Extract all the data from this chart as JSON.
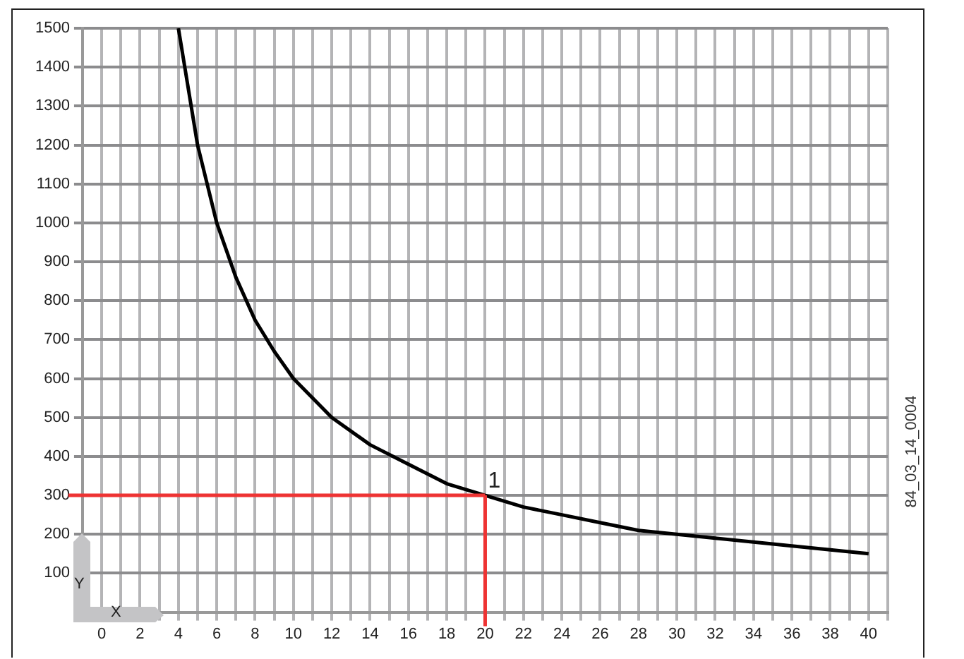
{
  "chart_data": {
    "type": "line",
    "xlabel": "X",
    "ylabel": "Y",
    "series": [
      {
        "color": "#000000",
        "x": [
          4,
          5,
          6,
          7,
          8,
          9,
          10,
          12,
          14,
          16,
          18,
          20,
          22,
          24,
          26,
          28,
          30,
          32,
          34,
          36,
          38,
          40
        ],
        "values": [
          1500,
          1200,
          1000,
          860,
          750,
          670,
          600,
          500,
          430,
          380,
          330,
          300,
          270,
          250,
          230,
          210,
          200,
          190,
          180,
          170,
          160,
          150
        ]
      }
    ],
    "xlim": [
      -1,
      41
    ],
    "xticks": [
      {
        "value": -1,
        "label": null
      },
      0,
      {
        "value": 1,
        "label": null
      },
      2,
      {
        "value": 3,
        "label": null
      },
      4,
      {
        "value": 5,
        "label": null
      },
      6,
      {
        "value": 7,
        "label": null
      },
      8,
      {
        "value": 9,
        "label": null
      },
      10,
      {
        "value": 11,
        "label": null
      },
      12,
      {
        "value": 13,
        "label": null
      },
      14,
      {
        "value": 15,
        "label": null
      },
      16,
      {
        "value": 17,
        "label": null
      },
      18,
      {
        "value": 19,
        "label": null
      },
      20,
      {
        "value": 21,
        "label": null
      },
      22,
      {
        "value": 23,
        "label": null
      },
      24,
      {
        "value": 25,
        "label": null
      },
      26,
      {
        "value": 27,
        "label": null
      },
      28,
      {
        "value": 29,
        "label": null
      },
      30,
      {
        "value": 31,
        "label": null
      },
      32,
      {
        "value": 33,
        "label": null
      },
      34,
      {
        "value": 35,
        "label": null
      },
      36,
      {
        "value": 37,
        "label": null
      },
      38,
      {
        "value": 39,
        "label": null
      },
      40,
      {
        "value": 41,
        "label": null
      }
    ],
    "ylim": [
      0,
      1500
    ],
    "yticks": [
      100,
      200,
      300,
      400,
      500,
      600,
      700,
      800,
      900,
      1000,
      1100,
      1200,
      1300,
      1400,
      1500
    ],
    "grid": true,
    "marker": "none",
    "line_style": "solid",
    "legend": false,
    "ref_lines": [
      {
        "axis": "y",
        "value": 300,
        "color": "#ee3333"
      },
      {
        "axis": "x",
        "value": 20,
        "color": "#ee3333"
      }
    ],
    "annotations": [
      {
        "text": "1",
        "x": 20,
        "y": 300
      },
      "84_03_14_0004"
    ]
  }
}
